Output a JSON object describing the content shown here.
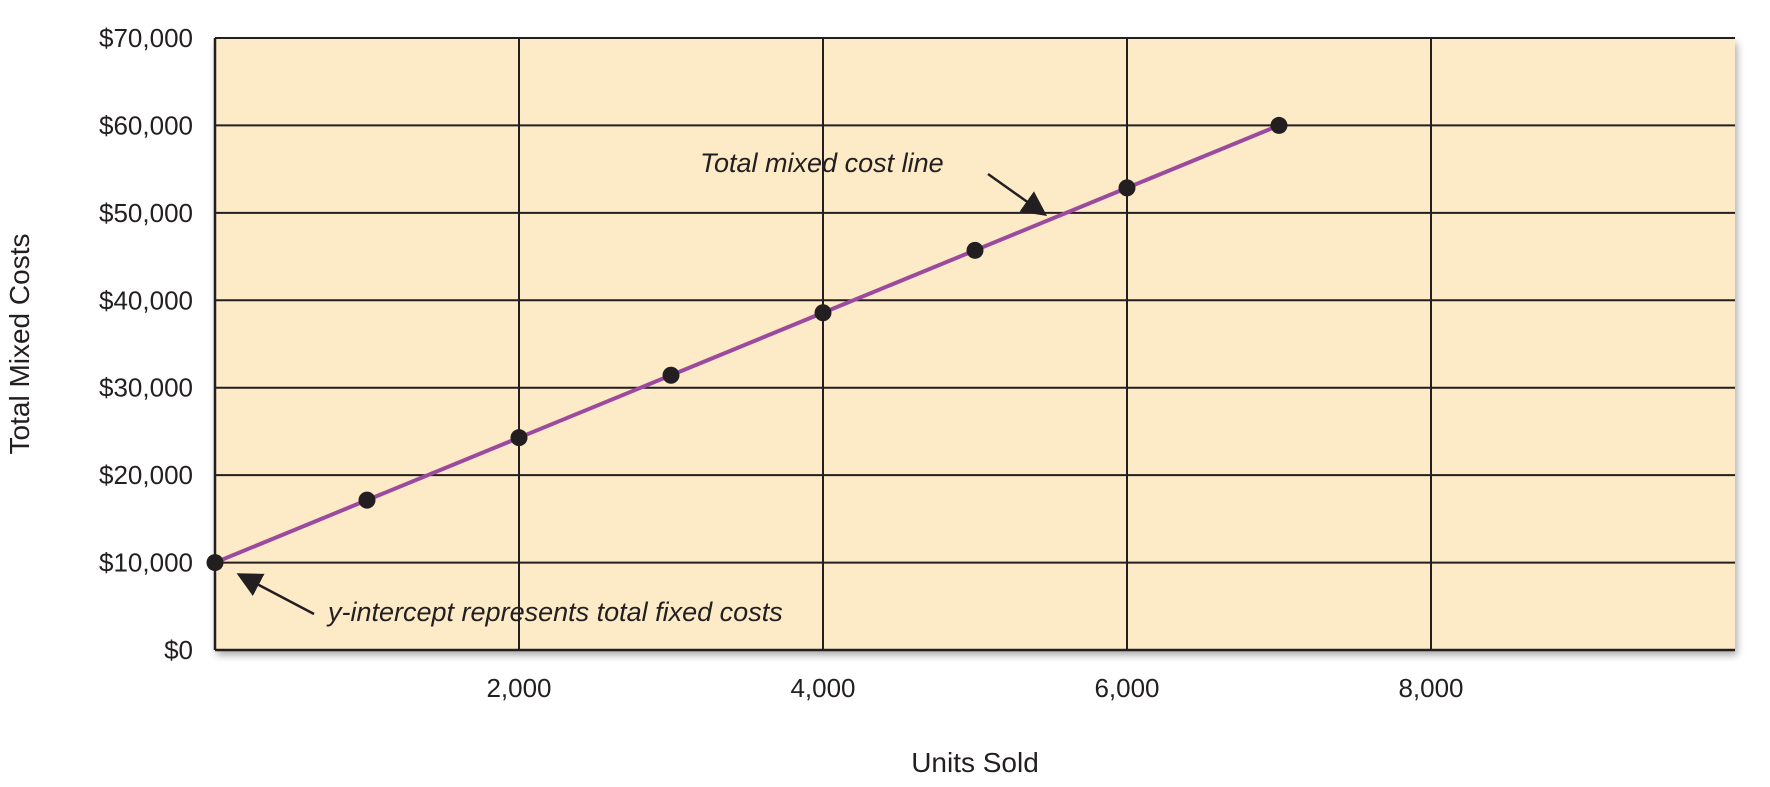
{
  "chart_data": {
    "type": "line",
    "xlabel": "Units Sold",
    "ylabel": "Total Mixed Costs",
    "xlim": [
      0,
      10000
    ],
    "ylim": [
      0,
      70000
    ],
    "x_ticks": [
      2000,
      4000,
      6000,
      8000
    ],
    "x_tick_labels": [
      "2,000",
      "4,000",
      "6,000",
      "8,000"
    ],
    "y_ticks": [
      0,
      10000,
      20000,
      30000,
      40000,
      50000,
      60000,
      70000
    ],
    "y_tick_labels": [
      "$0",
      "$10,000",
      "$20,000",
      "$30,000",
      "$40,000",
      "$50,000",
      "$60,000",
      "$70,000"
    ],
    "grid": true,
    "series": [
      {
        "x": [
          0,
          1000,
          2000,
          3000,
          4000,
          5000,
          6000,
          7000
        ],
        "y": [
          10000,
          17143,
          24286,
          31429,
          38571,
          45714,
          52857,
          60000
        ]
      }
    ],
    "annotations": [
      {
        "text": "Total mixed cost line",
        "target_x": 5500,
        "target_y": 49290
      },
      {
        "text": "y-intercept represents total fixed costs",
        "target_x": 0,
        "target_y": 10000
      }
    ],
    "colors": {
      "plot_background": "#fdebc8",
      "line": "#9b4a9d",
      "points": "#231f20",
      "grid": "#231f20"
    }
  }
}
